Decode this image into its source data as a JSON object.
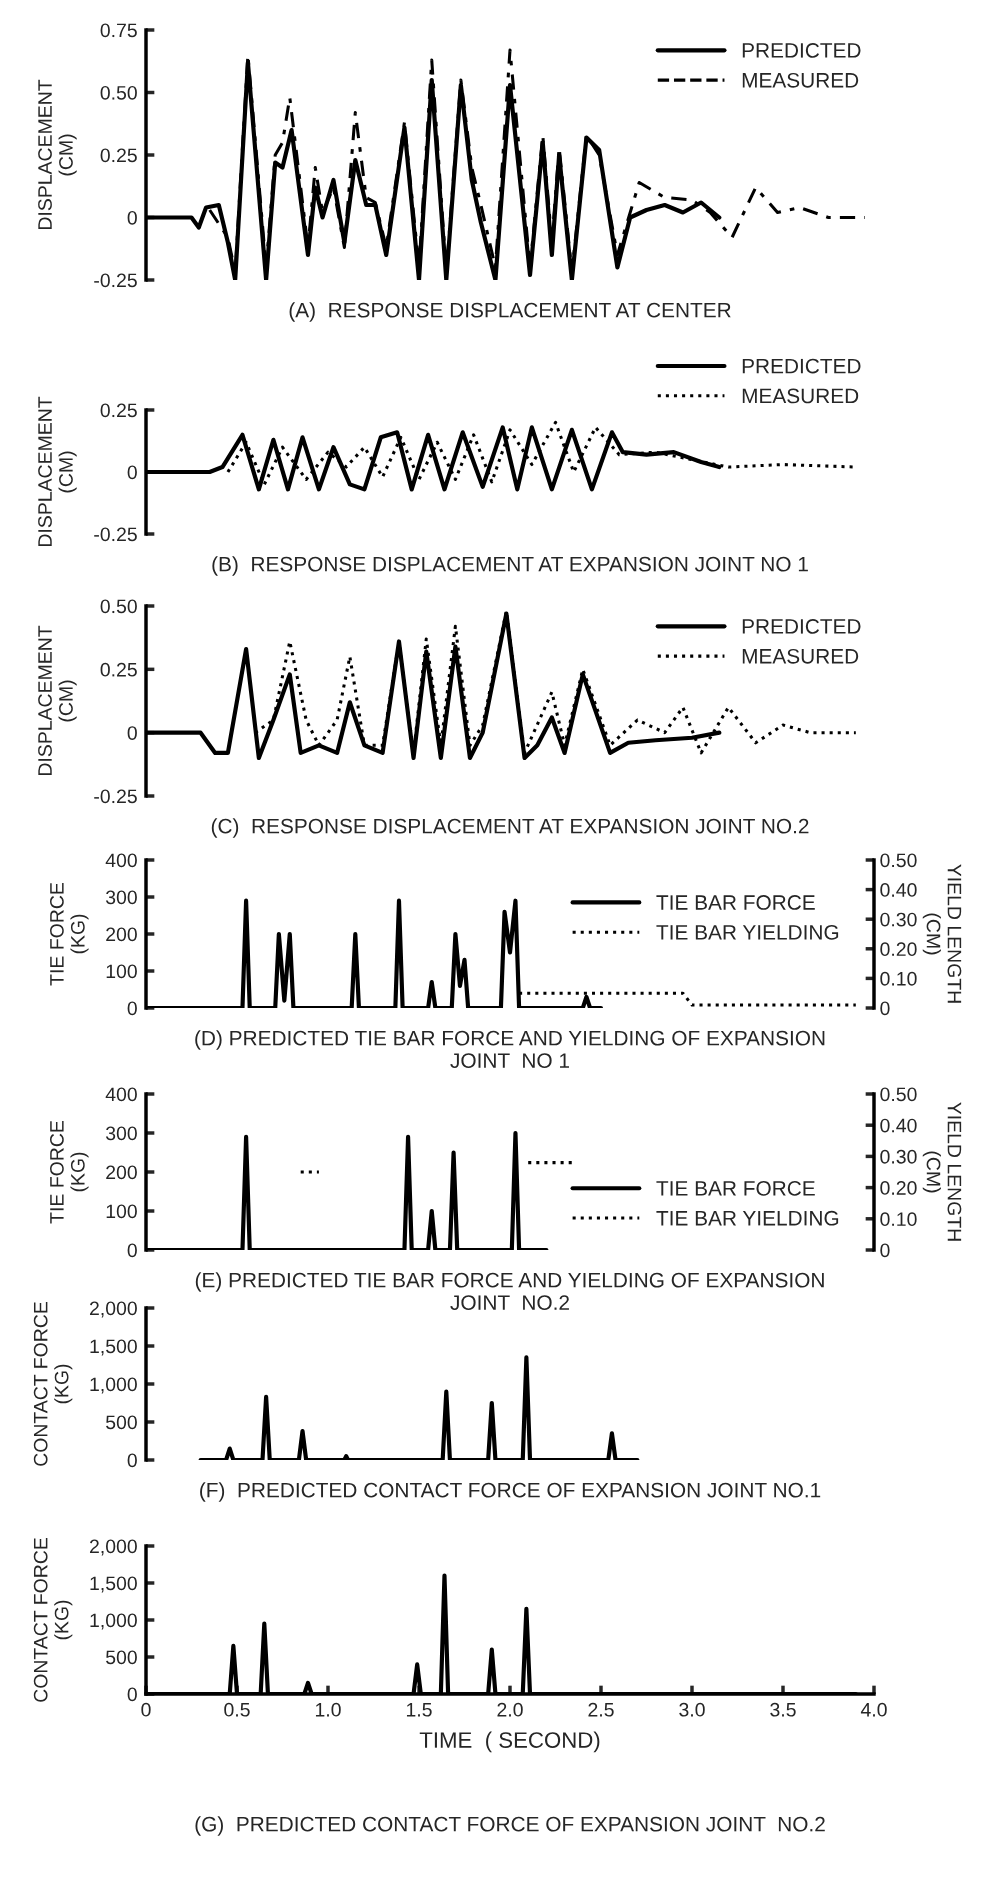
{
  "chart_data": [
    {
      "type": "line",
      "title": "(A)  RESPONSE DISPLACEMENT AT CENTER",
      "ylabel": "DISPLACEMENT\n(CM)",
      "xlim": [
        0,
        4.0
      ],
      "ylim": [
        -0.25,
        0.75
      ],
      "yticks": [
        -0.25,
        0,
        0.25,
        {
          "value": 0.5,
          "label": "0.50"
        },
        0.75
      ],
      "tick_labels": "y",
      "legend": "top right",
      "grid": false,
      "series": [
        {
          "name": "PREDICTED",
          "color": "#000000",
          "line_style": "solid",
          "x": [
            0,
            0.25,
            0.29,
            0.33,
            0.4,
            0.45,
            0.49,
            0.56,
            0.66,
            0.71,
            0.75,
            0.8,
            0.89,
            0.93,
            0.97,
            1.03,
            1.09,
            1.15,
            1.21,
            1.26,
            1.32,
            1.42,
            1.5,
            1.57,
            1.65,
            1.73,
            1.79,
            1.84,
            1.92,
            2.0,
            2.11,
            2.18,
            2.23,
            2.27,
            2.34,
            2.42,
            2.49,
            2.59,
            2.66,
            2.75,
            2.85,
            2.95,
            3.05,
            3.15
          ],
          "values": [
            0,
            0,
            -0.04,
            0.04,
            0.05,
            -0.1,
            -0.25,
            0.62,
            -0.25,
            0.22,
            0.2,
            0.35,
            -0.15,
            0.12,
            0.0,
            0.15,
            -0.1,
            0.23,
            0.05,
            0.05,
            -0.15,
            0.36,
            -0.25,
            0.55,
            -0.25,
            0.53,
            0.15,
            -0.02,
            -0.25,
            0.53,
            -0.23,
            0.3,
            -0.15,
            0.25,
            -0.25,
            0.32,
            0.27,
            -0.2,
            0.0,
            0.03,
            0.05,
            0.02,
            0.06,
            0.0
          ]
        },
        {
          "name": "MEASURED",
          "color": "#000000",
          "line_style": "dashed",
          "x": [
            0.35,
            0.45,
            0.49,
            0.56,
            0.66,
            0.71,
            0.75,
            0.79,
            0.89,
            0.93,
            0.97,
            1.03,
            1.09,
            1.15,
            1.21,
            1.26,
            1.32,
            1.42,
            1.5,
            1.57,
            1.65,
            1.73,
            1.79,
            1.84,
            1.92,
            2.0,
            2.11,
            2.18,
            2.23,
            2.27,
            2.34,
            2.42,
            2.49,
            2.59,
            2.71,
            2.85,
            3.0,
            3.1,
            3.22,
            3.35,
            3.47,
            3.59,
            3.75,
            3.95
          ],
          "values": [
            0.03,
            -0.08,
            -0.22,
            0.65,
            -0.2,
            0.25,
            0.3,
            0.48,
            -0.12,
            0.2,
            0.02,
            0.12,
            -0.12,
            0.42,
            0.08,
            0.06,
            -0.12,
            0.38,
            -0.2,
            0.63,
            -0.22,
            0.55,
            0.2,
            0.05,
            -0.2,
            0.67,
            -0.2,
            0.33,
            -0.1,
            0.28,
            -0.22,
            0.33,
            0.25,
            -0.15,
            0.14,
            0.08,
            0.07,
            0.02,
            -0.08,
            0.12,
            0.02,
            0.04,
            0.0,
            0.0
          ]
        }
      ]
    },
    {
      "type": "line",
      "title": "(B)  RESPONSE DISPLACEMENT AT EXPANSION JOINT NO 1",
      "ylabel": "DISPLACEMENT\n(CM)",
      "xlim": [
        0,
        4.0
      ],
      "ylim": [
        -0.25,
        0.25
      ],
      "yticks": [
        -0.25,
        0,
        0.25
      ],
      "tick_labels": "y",
      "legend": "top right",
      "grid": false,
      "series": [
        {
          "name": "PREDICTED",
          "color": "#000000",
          "line_style": "solid",
          "x": [
            0,
            0.35,
            0.42,
            0.53,
            0.62,
            0.7,
            0.78,
            0.86,
            0.95,
            1.03,
            1.12,
            1.2,
            1.29,
            1.38,
            1.46,
            1.55,
            1.64,
            1.74,
            1.85,
            1.96,
            2.04,
            2.12,
            2.23,
            2.34,
            2.45,
            2.56,
            2.62,
            2.75,
            2.9,
            3.05,
            3.15
          ],
          "values": [
            0,
            0,
            0.02,
            0.15,
            -0.07,
            0.13,
            -0.07,
            0.14,
            -0.07,
            0.1,
            -0.05,
            -0.07,
            0.14,
            0.16,
            -0.07,
            0.15,
            -0.07,
            0.16,
            -0.06,
            0.18,
            -0.07,
            0.18,
            -0.07,
            0.17,
            -0.07,
            0.16,
            0.08,
            0.07,
            0.08,
            0.04,
            0.02
          ]
        },
        {
          "name": "MEASURED",
          "color": "#000000",
          "line_style": "dotted",
          "x": [
            0.45,
            0.55,
            0.65,
            0.75,
            0.88,
            1.0,
            1.1,
            1.2,
            1.3,
            1.4,
            1.5,
            1.6,
            1.7,
            1.8,
            1.9,
            2.0,
            2.12,
            2.25,
            2.35,
            2.47,
            2.6,
            2.8,
            3.0,
            3.2,
            3.5,
            3.9
          ],
          "values": [
            0,
            0.12,
            -0.05,
            0.1,
            -0.03,
            0.08,
            0.02,
            0.1,
            -0.02,
            0.14,
            -0.03,
            0.12,
            -0.03,
            0.15,
            -0.04,
            0.17,
            0.03,
            0.2,
            0.0,
            0.18,
            0.07,
            0.08,
            0.05,
            0.02,
            0.03,
            0.02
          ]
        }
      ]
    },
    {
      "type": "line",
      "title": "(C)  RESPONSE DISPLACEMENT AT EXPANSION JOINT NO.2",
      "ylabel": "DISPLACEMENT\n(CM)",
      "xlim": [
        0,
        4.0
      ],
      "ylim": [
        -0.25,
        0.5
      ],
      "yticks": [
        -0.25,
        0,
        0.25,
        {
          "value": 0.5,
          "label": "0.50"
        }
      ],
      "tick_labels": "y",
      "legend": "top right",
      "grid": false,
      "series": [
        {
          "name": "PREDICTED",
          "color": "#000000",
          "line_style": "solid",
          "x": [
            0,
            0.3,
            0.38,
            0.45,
            0.55,
            0.62,
            0.7,
            0.79,
            0.85,
            0.95,
            1.05,
            1.12,
            1.2,
            1.3,
            1.39,
            1.47,
            1.54,
            1.62,
            1.7,
            1.78,
            1.85,
            1.98,
            2.08,
            2.15,
            2.23,
            2.3,
            2.4,
            2.55,
            2.65,
            2.8,
            3.0,
            3.15
          ],
          "values": [
            0,
            0.0,
            -0.08,
            -0.08,
            0.33,
            -0.1,
            0.05,
            0.23,
            -0.08,
            -0.05,
            -0.08,
            0.12,
            -0.05,
            -0.08,
            0.36,
            -0.1,
            0.32,
            -0.1,
            0.34,
            -0.1,
            0.0,
            0.47,
            -0.1,
            -0.05,
            0.06,
            -0.08,
            0.23,
            -0.08,
            -0.04,
            -0.03,
            -0.02,
            0.0
          ]
        },
        {
          "name": "MEASURED",
          "color": "#000000",
          "line_style": "dotted",
          "x": [
            0.6,
            0.7,
            0.79,
            0.88,
            0.95,
            1.05,
            1.12,
            1.2,
            1.3,
            1.39,
            1.47,
            1.54,
            1.62,
            1.7,
            1.78,
            1.85,
            1.98,
            2.08,
            2.23,
            2.3,
            2.4,
            2.55,
            2.7,
            2.85,
            2.95,
            3.05,
            3.2,
            3.35,
            3.5,
            3.65,
            3.9
          ],
          "values": [
            0.0,
            0.05,
            0.36,
            0.05,
            -0.05,
            0.05,
            0.3,
            -0.05,
            -0.05,
            0.36,
            -0.08,
            0.37,
            -0.05,
            0.42,
            -0.05,
            0.03,
            0.48,
            -0.08,
            0.16,
            -0.05,
            0.25,
            -0.05,
            0.05,
            0.0,
            0.1,
            -0.08,
            0.1,
            -0.04,
            0.03,
            0.0,
            0.0
          ]
        }
      ]
    },
    {
      "type": "line",
      "title": "(D) PREDICTED TIE BAR FORCE AND YIELDING OF EXPANSION\nJOINT  NO 1",
      "ylabel": "TIE FORCE\n(KG)",
      "y2label": "YIELD LENGTH\n(CM)",
      "xlim": [
        0,
        4.0
      ],
      "ylim": [
        0,
        400
      ],
      "yticks": [
        0,
        100,
        200,
        300,
        400
      ],
      "y2lim": [
        0,
        0.5
      ],
      "y2ticks": [
        0,
        {
          "value": 0.1,
          "label": "0.10"
        },
        {
          "value": 0.2,
          "label": "0.20"
        },
        {
          "value": 0.3,
          "label": "0.30"
        },
        {
          "value": 0.4,
          "label": "0.40"
        },
        {
          "value": 0.5,
          "label": "0.50"
        }
      ],
      "tick_labels": "y",
      "legend": "right",
      "grid": false,
      "series": [
        {
          "name": "TIE BAR FORCE",
          "color": "#000000",
          "line_style": "solid",
          "x": [
            0,
            0.53,
            0.55,
            0.57,
            0.71,
            0.73,
            0.76,
            0.79,
            0.81,
            1.13,
            1.15,
            1.17,
            1.37,
            1.39,
            1.41,
            1.55,
            1.57,
            1.59,
            1.68,
            1.7,
            1.725,
            1.75,
            1.77,
            1.95,
            1.97,
            2.0,
            2.03,
            2.05,
            2.4,
            2.42,
            2.44,
            2.5
          ],
          "values": [
            0,
            0,
            290,
            0,
            0,
            200,
            20,
            200,
            0,
            0,
            200,
            0,
            0,
            290,
            0,
            0,
            70,
            0,
            0,
            200,
            60,
            130,
            0,
            0,
            260,
            150,
            290,
            0,
            0,
            30,
            0,
            0
          ]
        },
        {
          "name": "TIE BAR YIELDING",
          "color": "#000000",
          "line_style": "dotted",
          "axis": "y2",
          "x": [
            2.05,
            2.95,
            3.0,
            3.9
          ],
          "values": [
            0.05,
            0.05,
            0.01,
            0.01
          ]
        }
      ]
    },
    {
      "type": "line",
      "title": "(E) PREDICTED TIE BAR FORCE AND YIELDING OF EXPANSION\nJOINT  NO.2",
      "ylabel": "TIE FORCE\n(KG)",
      "y2label": "YIELD LENGTH\n(CM)",
      "xlim": [
        0,
        4.0
      ],
      "ylim": [
        0,
        400
      ],
      "yticks": [
        0,
        100,
        200,
        300,
        400
      ],
      "y2lim": [
        0,
        0.5
      ],
      "y2ticks": [
        0,
        {
          "value": 0.1,
          "label": "0.10"
        },
        {
          "value": 0.2,
          "label": "0.20"
        },
        {
          "value": 0.3,
          "label": "0.30"
        },
        {
          "value": 0.4,
          "label": "0.40"
        },
        {
          "value": 0.5,
          "label": "0.50"
        }
      ],
      "tick_labels": "y",
      "legend": "bottom right",
      "grid": false,
      "series": [
        {
          "name": "TIE BAR FORCE",
          "color": "#000000",
          "line_style": "solid",
          "x": [
            0,
            0.53,
            0.55,
            0.57,
            1.42,
            1.44,
            1.46,
            1.55,
            1.57,
            1.59,
            1.67,
            1.69,
            1.71,
            2.01,
            2.03,
            2.05,
            2.2
          ],
          "values": [
            0,
            0,
            290,
            0,
            0,
            290,
            0,
            0,
            100,
            0,
            0,
            250,
            0,
            0,
            300,
            0,
            0
          ]
        },
        {
          "name": "TIE BAR YIELDING",
          "color": "#000000",
          "line_style": "dotted",
          "axis": "y2",
          "x": [
            0.85,
            0.95,
            1.0,
            2.1,
            2.35
          ],
          "values": [
            0.25,
            0.25,
            null,
            0.28,
            0.28
          ]
        }
      ]
    },
    {
      "type": "line",
      "title": "(F)  PREDICTED CONTACT FORCE OF EXPANSION JOINT NO.1",
      "ylabel": "CONTACT FORCE\n(KG)",
      "xlim": [
        0,
        4.0
      ],
      "ylim": [
        0,
        2000
      ],
      "yticks": [
        0,
        500,
        {
          "value": 1000,
          "label": "1,000"
        },
        {
          "value": 1500,
          "label": "1,500"
        },
        {
          "value": 2000,
          "label": "2,000"
        }
      ],
      "tick_labels": "y",
      "grid": false,
      "series": [
        {
          "color": "#000000",
          "line_style": "solid",
          "x": [
            0.3,
            0.44,
            0.46,
            0.48,
            0.64,
            0.66,
            0.68,
            0.84,
            0.86,
            0.88,
            1.09,
            1.1,
            1.11,
            1.63,
            1.65,
            1.67,
            1.88,
            1.9,
            1.92,
            2.07,
            2.09,
            2.11,
            2.54,
            2.56,
            2.58,
            2.7
          ],
          "values": [
            0,
            0,
            150,
            0,
            0,
            830,
            0,
            0,
            380,
            0,
            0,
            50,
            0,
            0,
            900,
            0,
            0,
            750,
            0,
            0,
            1350,
            0,
            0,
            350,
            0,
            0
          ]
        }
      ]
    },
    {
      "type": "line",
      "title": "(G)  PREDICTED CONTACT FORCE OF EXPANSION JOINT  NO.2",
      "ylabel": "CONTACT FORCE\n(KG)",
      "xlabel": "TIME  ( SECOND)",
      "xlim": [
        0,
        4.0
      ],
      "xticks": [
        0,
        0.5,
        {
          "value": 1.0,
          "label": "1.0"
        },
        1.5,
        {
          "value": 2.0,
          "label": "2.0"
        },
        2.5,
        {
          "value": 3.0,
          "label": "3.0"
        },
        3.5,
        {
          "value": 4.0,
          "label": "4.0"
        }
      ],
      "ylim": [
        0,
        2000
      ],
      "yticks": [
        0,
        500,
        {
          "value": 1000,
          "label": "1,000"
        },
        {
          "value": 1500,
          "label": "1,500"
        },
        {
          "value": 2000,
          "label": "2,000"
        }
      ],
      "grid": false,
      "series": [
        {
          "color": "#000000",
          "line_style": "solid",
          "x": [
            0,
            0.46,
            0.48,
            0.5,
            0.63,
            0.65,
            0.67,
            0.87,
            0.89,
            0.91,
            1.47,
            1.49,
            1.51,
            1.62,
            1.64,
            1.66,
            1.88,
            1.9,
            1.92,
            2.07,
            2.09,
            2.11,
            3.9
          ],
          "values": [
            0,
            0,
            650,
            0,
            0,
            950,
            0,
            0,
            150,
            0,
            0,
            400,
            0,
            0,
            1600,
            0,
            0,
            600,
            0,
            0,
            1150,
            0,
            0
          ]
        }
      ]
    }
  ]
}
